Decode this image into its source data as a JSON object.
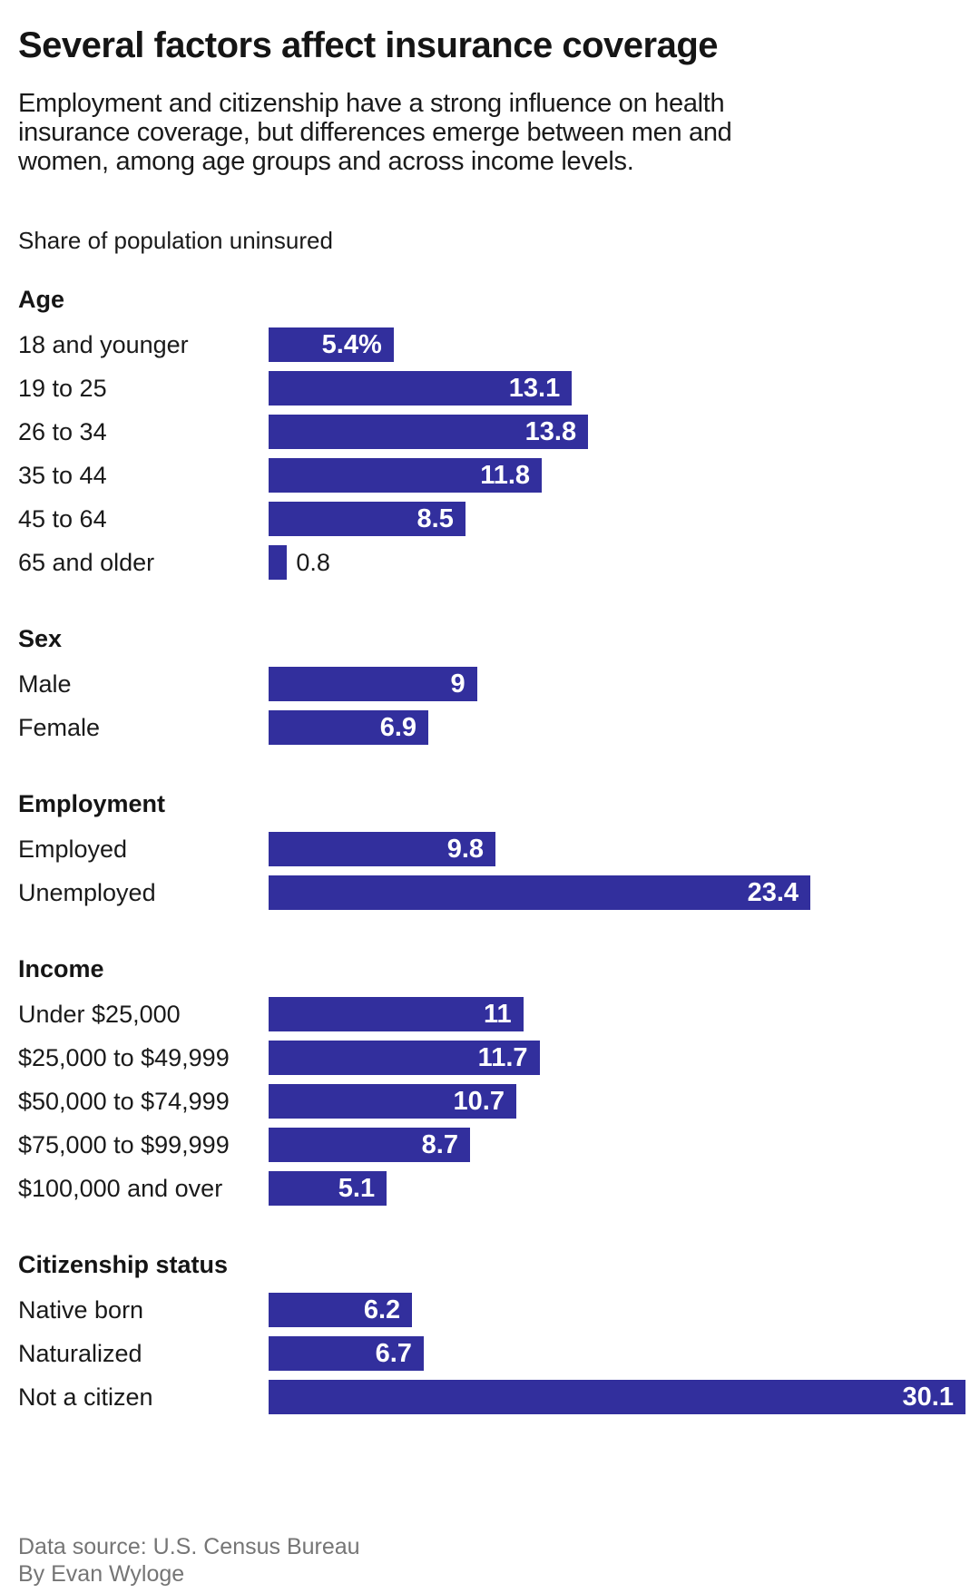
{
  "title": "Several factors affect insurance coverage",
  "subtitle_lines": [
    "Employment and citizenship have a strong influence on health",
    "insurance coverage, but differences emerge between men and",
    "women, among age groups and across income levels."
  ],
  "note": "Share of population uninsured",
  "footer": {
    "source": "Data source: U.S. Census Bureau",
    "byline": "By Evan Wyloge"
  },
  "colors": {
    "bar": "#322f9d",
    "heading_text": "#151515",
    "body_text": "#1a1a1a",
    "value_text_inside": "#ffffff",
    "footer_text": "#757575",
    "background": "#ffffff"
  },
  "chart_data": {
    "type": "bar",
    "orientation": "horizontal",
    "value_unit": "percent",
    "axis_max": 30.1,
    "title": "Several factors affect insurance coverage",
    "note": "Share of population uninsured",
    "legend": "none",
    "grid": "off",
    "groups": [
      {
        "header": "Age",
        "rows": [
          {
            "label": "18 and younger",
            "value": 5.4,
            "display": "5.4%"
          },
          {
            "label": "19 to 25",
            "value": 13.1,
            "display": "13.1"
          },
          {
            "label": "26 to 34",
            "value": 13.8,
            "display": "13.8"
          },
          {
            "label": "35 to 44",
            "value": 11.8,
            "display": "11.8"
          },
          {
            "label": "45 to 64",
            "value": 8.5,
            "display": "8.5"
          },
          {
            "label": "65 and older",
            "value": 0.8,
            "display": "0.8",
            "label_outside": true
          }
        ]
      },
      {
        "header": "Sex",
        "rows": [
          {
            "label": "Male",
            "value": 9,
            "display": "9"
          },
          {
            "label": "Female",
            "value": 6.9,
            "display": "6.9"
          }
        ]
      },
      {
        "header": "Employment",
        "rows": [
          {
            "label": "Employed",
            "value": 9.8,
            "display": "9.8"
          },
          {
            "label": "Unemployed",
            "value": 23.4,
            "display": "23.4"
          }
        ]
      },
      {
        "header": "Income",
        "rows": [
          {
            "label": "Under $25,000",
            "value": 11,
            "display": "11"
          },
          {
            "label": "$25,000 to $49,999",
            "value": 11.7,
            "display": "11.7"
          },
          {
            "label": "$50,000 to $74,999",
            "value": 10.7,
            "display": "10.7"
          },
          {
            "label": "$75,000 to $99,999",
            "value": 8.7,
            "display": "8.7"
          },
          {
            "label": "$100,000 and over",
            "value": 5.1,
            "display": "5.1"
          }
        ]
      },
      {
        "header": "Citizenship status",
        "rows": [
          {
            "label": "Native born",
            "value": 6.2,
            "display": "6.2"
          },
          {
            "label": "Naturalized",
            "value": 6.7,
            "display": "6.7"
          },
          {
            "label": "Not a citizen",
            "value": 30.1,
            "display": "30.1"
          }
        ]
      }
    ]
  }
}
